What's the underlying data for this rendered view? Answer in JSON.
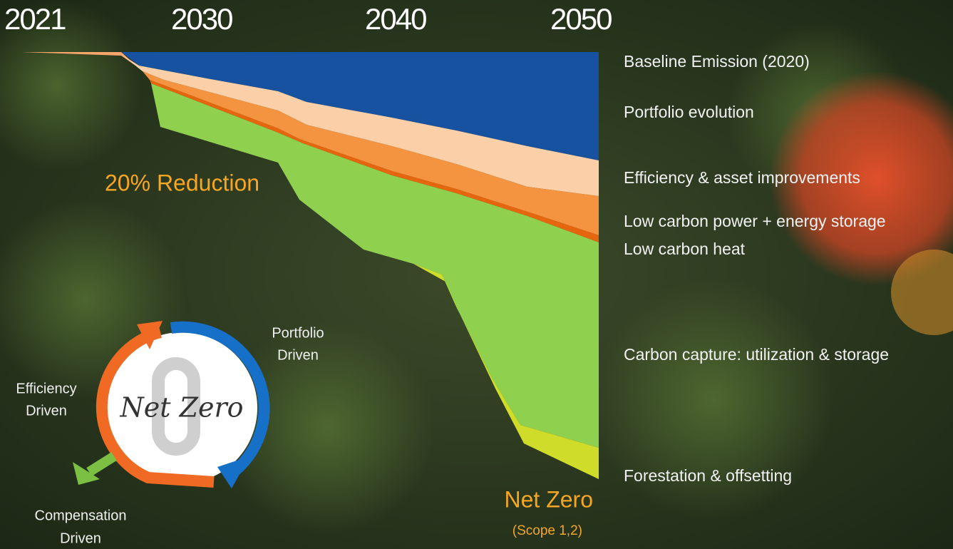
{
  "timeline": {
    "years": [
      "2021",
      "2030",
      "2040",
      "2050"
    ]
  },
  "legend": [
    "Baseline Emission (2020)",
    "Portfolio evolution",
    "Efficiency & asset improvements",
    "Low carbon power + energy storage",
    "Low carbon heat",
    "Carbon capture: utilization & storage",
    "Forestation & offsetting"
  ],
  "annotations": {
    "reduction": "20% Reduction",
    "net_zero": "Net Zero",
    "scope": "(Scope 1,2)"
  },
  "cycle": {
    "center": "Net Zero",
    "drivers": [
      {
        "lines": [
          "Portfolio",
          "Driven"
        ]
      },
      {
        "lines": [
          "Efficiency",
          "Driven"
        ]
      },
      {
        "lines": [
          "Compensation",
          "Driven"
        ]
      }
    ]
  }
}
